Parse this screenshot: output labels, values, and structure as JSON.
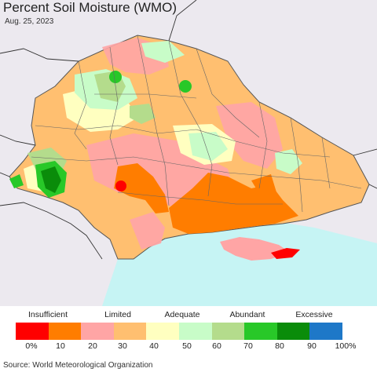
{
  "title": "Percent Soil Moisture (WMO)",
  "date": "Aug. 25, 2023",
  "source": "Source: World Meteorological Organization",
  "legend": {
    "categories": [
      "Insufficient",
      "Limited",
      "Adequate",
      "Abundant",
      "Excessive"
    ],
    "ticks": [
      "0%",
      "10",
      "20",
      "30",
      "40",
      "50",
      "60",
      "70",
      "80",
      "90",
      "100%"
    ],
    "colors": [
      "#ff0000",
      "#ff7d00",
      "#ffa5a5",
      "#ffbf70",
      "#ffffc0",
      "#c8fcc8",
      "#b4dc8c",
      "#28c828",
      "#0a8c0a",
      "#1e78c8"
    ]
  },
  "map": {
    "background": "#ece9ef",
    "water": "#c6f4f4",
    "border_color": "#555555"
  }
}
